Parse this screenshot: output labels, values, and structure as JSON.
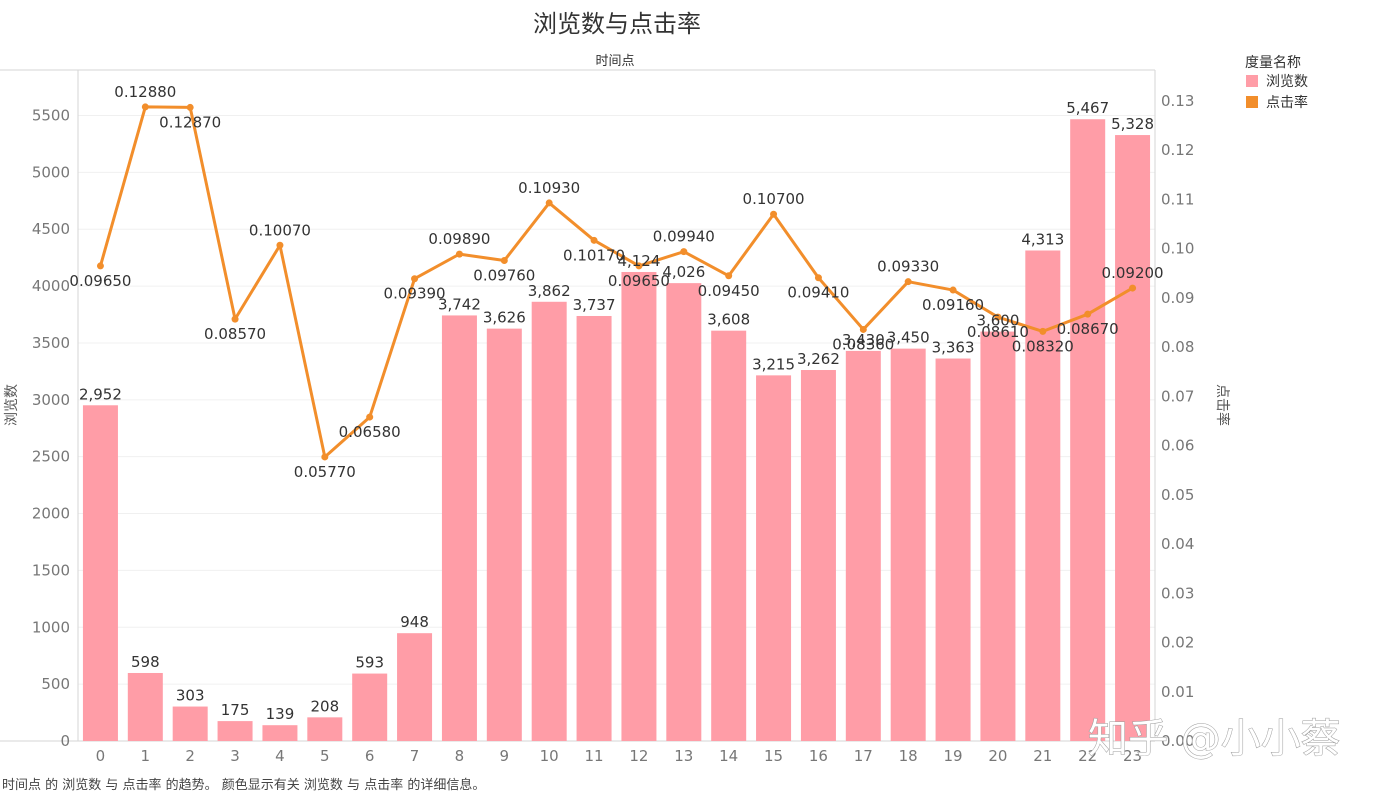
{
  "chart_data": {
    "type": "bar",
    "title": "浏览数与点击率",
    "xlabel": "时间点",
    "ylabel_left": "浏览数",
    "ylabel_right": "点击率",
    "categories": [
      "0",
      "1",
      "2",
      "3",
      "4",
      "5",
      "6",
      "7",
      "8",
      "9",
      "10",
      "11",
      "12",
      "13",
      "14",
      "15",
      "16",
      "17",
      "18",
      "19",
      "20",
      "21",
      "22",
      "23"
    ],
    "series": [
      {
        "name": "浏览数",
        "type": "bar",
        "axis": "left",
        "color": "#FF9DA7",
        "values": [
          2952,
          598,
          303,
          175,
          139,
          208,
          593,
          948,
          3742,
          3626,
          3862,
          3737,
          4124,
          4026,
          3608,
          3215,
          3262,
          3430,
          3450,
          3363,
          3600,
          4313,
          5467,
          5328
        ],
        "labels": [
          "2,952",
          "598",
          "303",
          "175",
          "139",
          "208",
          "593",
          "948",
          "3,742",
          "3,626",
          "3,862",
          "3,737",
          "4,124",
          "4,026",
          "3,608",
          "3,215",
          "3,262",
          "3,430",
          "3,450",
          "3,363",
          "3,600",
          "4,313",
          "5,467",
          "5,328"
        ]
      },
      {
        "name": "点击率",
        "type": "line",
        "axis": "right",
        "color": "#F28E2B",
        "values": [
          0.0965,
          0.1288,
          0.1287,
          0.0857,
          0.1007,
          0.0577,
          0.0658,
          0.0939,
          0.0989,
          0.0976,
          0.1093,
          0.1017,
          0.0965,
          0.0994,
          0.0945,
          0.107,
          0.0941,
          0.0836,
          0.0933,
          0.0916,
          0.0861,
          0.0832,
          0.0867,
          0.092
        ],
        "labels": [
          "0.09650",
          "0.12880",
          "0.12870",
          "0.08570",
          "0.10070",
          "0.05770",
          "0.06580",
          "0.09390",
          "0.09890",
          "0.09760",
          "0.10930",
          "0.10170",
          "0.09650",
          "0.09940",
          "0.09450",
          "0.10700",
          "0.09410",
          "0.08360",
          "0.09330",
          "0.09160",
          "0.08610",
          "0.08320",
          "0.08670",
          "0.09200"
        ]
      }
    ],
    "ylim_left": [
      0,
      5900
    ],
    "yticks_left": [
      0,
      500,
      1000,
      1500,
      2000,
      2500,
      3000,
      3500,
      4000,
      4500,
      5000,
      5500
    ],
    "ylim_right": [
      0,
      0.1363
    ],
    "yticks_right": [
      "0.00",
      "0.01",
      "0.02",
      "0.03",
      "0.04",
      "0.05",
      "0.06",
      "0.07",
      "0.08",
      "0.09",
      "0.10",
      "0.11",
      "0.12",
      "0.13"
    ],
    "legend": {
      "title": "度量名称",
      "position": "top-right"
    },
    "grid": true
  },
  "caption": "时间点 的 浏览数 与 点击率 的趋势。 颜色显示有关 浏览数 与 点击率 的详细信息。",
  "watermark": "知乎 @小小蔡"
}
